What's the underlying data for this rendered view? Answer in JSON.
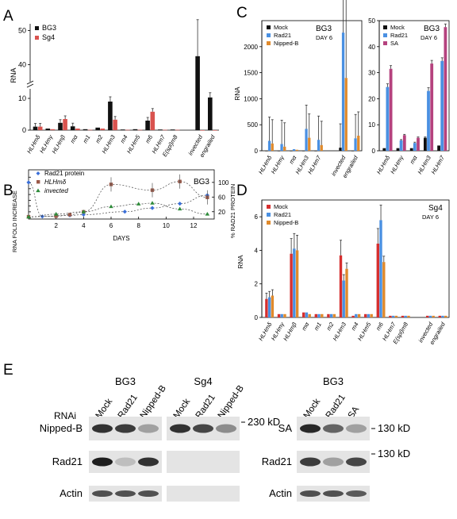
{
  "panel_letters": [
    "A",
    "B",
    "C",
    "D",
    "E"
  ],
  "chart_data": [
    {
      "id": "A",
      "type": "bar",
      "title": "",
      "ylabel": "RNA",
      "ylim_lower": [
        0,
        13
      ],
      "ylim_upper": [
        35,
        52
      ],
      "ticks_lower": [
        0,
        10
      ],
      "ticks_upper": [
        40,
        50
      ],
      "categories": [
        "HLHmδ",
        "HLHmγ",
        "HLHmβ",
        "mα",
        "m1",
        "m2",
        "HLHm3",
        "m4",
        "HLHm5",
        "m6",
        "HLHm7",
        "E(spl)m8",
        "",
        "invected",
        "engrailed"
      ],
      "series": [
        {
          "name": "BG3",
          "color": "#111111",
          "values": [
            1.1,
            0.5,
            2.3,
            1.2,
            0.3,
            0.8,
            9,
            0.2,
            0.3,
            3,
            0.2,
            0.2,
            null,
            42.5,
            10.3
          ]
        },
        {
          "name": "Sg4",
          "color": "#d9534f",
          "values": [
            1.1,
            0.3,
            3.5,
            0.5,
            0.1,
            0.5,
            3.3,
            0.1,
            0.1,
            5.8,
            0.1,
            0.1,
            null,
            0,
            0
          ]
        }
      ]
    },
    {
      "id": "B",
      "type": "scatter",
      "title": "BG3",
      "xlabel": "DAYS",
      "ylabel": "RNA FOLD INCREASE",
      "y2label": "% RAD21 PROTEIN",
      "xlim": [
        0,
        13.5
      ],
      "xticks": [
        2,
        4,
        6,
        8,
        10,
        12
      ],
      "ylim": [
        -5,
        160
      ],
      "yticks": [
        0,
        20,
        40,
        60,
        80,
        100,
        120,
        140
      ],
      "y2lim": [
        0,
        130
      ],
      "y2ticks": [
        20,
        60,
        100
      ],
      "series": [
        {
          "name": "Rad21 protein",
          "color": "#3b6fd8",
          "marker": "diamond",
          "axis": "y2",
          "x": [
            0,
            1,
            3,
            4,
            7,
            9,
            11,
            13
          ],
          "y": [
            100,
            7,
            10,
            12,
            20,
            30,
            42,
            65
          ]
        },
        {
          "name": "HLHmδ",
          "color": "#9b5a4a",
          "marker": "square",
          "axis": "y",
          "x": [
            0,
            2,
            3,
            4,
            6,
            9,
            11,
            13
          ],
          "y": [
            3,
            5,
            10,
            20,
            115,
            95,
            125,
            70
          ]
        },
        {
          "name": "invected",
          "color": "#2e8b3a",
          "marker": "triangle",
          "axis": "y",
          "x": [
            0,
            2,
            4,
            6,
            8,
            9,
            11,
            13
          ],
          "y": [
            2,
            12,
            20,
            38,
            47,
            50,
            30,
            12
          ]
        }
      ]
    },
    {
      "id": "C1",
      "type": "bar",
      "title": "BG3",
      "subtitle": "DAY 6",
      "ylabel": "RNA",
      "ylim": [
        0,
        2500
      ],
      "yticks": [
        0,
        500,
        1000,
        1500,
        2000
      ],
      "categories": [
        "HLHmδ",
        "HLHmγ",
        "mα",
        "HLHm3",
        "HLHm7",
        "",
        "invected",
        "engrailed"
      ],
      "series": [
        {
          "name": "Mock",
          "color": "#111111",
          "values": [
            0,
            0,
            0,
            0,
            0,
            null,
            60,
            0
          ]
        },
        {
          "name": "Rad21",
          "color": "#4a90e2",
          "values": [
            190,
            130,
            30,
            420,
            210,
            null,
            2270,
            240
          ]
        },
        {
          "name": "Nipped-B",
          "color": "#e08a2c",
          "values": [
            140,
            80,
            20,
            250,
            110,
            null,
            1400,
            290
          ]
        }
      ]
    },
    {
      "id": "C2",
      "type": "bar",
      "title": "BG3",
      "subtitle": "DAY 6",
      "ylabel": "",
      "ylim": [
        0,
        50
      ],
      "yticks": [
        0,
        10,
        20,
        30,
        40,
        50
      ],
      "categories": [
        "HLHmδ",
        "HLHmγ",
        "mα",
        "HLHm3",
        "HLHm7"
      ],
      "series": [
        {
          "name": "Mock",
          "color": "#111111",
          "values": [
            1,
            1,
            1,
            5,
            2
          ]
        },
        {
          "name": "Rad21",
          "color": "#4a90e2",
          "values": [
            24.5,
            4,
            3,
            23,
            34.5
          ]
        },
        {
          "name": "SA",
          "color": "#b5427e",
          "values": [
            31.5,
            6,
            5,
            33.5,
            47.5
          ]
        }
      ]
    },
    {
      "id": "D",
      "type": "bar",
      "title": "Sg4",
      "subtitle": "DAY 6",
      "ylabel": "RNA",
      "ylim": [
        0,
        7
      ],
      "yticks": [
        0,
        2,
        4,
        6
      ],
      "categories": [
        "HLHmδ",
        "HLHmγ",
        "HLHmβ",
        "mα",
        "m1",
        "m2",
        "HLHm3",
        "m4",
        "HLHm5",
        "m6",
        "HLHm7",
        "E(spl)m8",
        "",
        "invected",
        "engrailed"
      ],
      "series": [
        {
          "name": "Mock",
          "color": "#d62f2f",
          "values": [
            1.1,
            0.2,
            3.8,
            0.3,
            0.2,
            0.2,
            3.7,
            0.1,
            0.2,
            4.4,
            0.1,
            0.1,
            null,
            0.1,
            0.1
          ]
        },
        {
          "name": "Rad21",
          "color": "#4a90e2",
          "values": [
            1.2,
            0.2,
            4.1,
            0.3,
            0.2,
            0.2,
            2.2,
            0.2,
            0.2,
            5.8,
            0.1,
            0.1,
            null,
            0.1,
            0.1
          ]
        },
        {
          "name": "Nipped-B",
          "color": "#e08a2c",
          "values": [
            1.3,
            0.2,
            4.0,
            0.2,
            0.2,
            0.2,
            2.9,
            0.2,
            0.2,
            3.3,
            0.1,
            0.1,
            null,
            0.1,
            0.1
          ]
        }
      ]
    }
  ],
  "blot": {
    "rnai_label": "RNAi",
    "groups": [
      {
        "title": "BG3",
        "lanes": [
          "Mock",
          "Rad21",
          "Nipped-B"
        ]
      },
      {
        "title": "Sg4",
        "lanes": [
          "Mock",
          "Rad21",
          "Nipped-B"
        ]
      },
      {
        "title": "BG3",
        "lanes": [
          "Mock",
          "Rad21",
          "SA"
        ]
      }
    ],
    "row_labels_left": [
      "Nipped-B",
      "Rad21",
      "Actin"
    ],
    "row_labels_right": [
      "SA",
      "Rad21",
      "Actin"
    ],
    "size_labels": [
      "230 kD",
      "130 kD",
      "130 kD"
    ],
    "band_intensity": [
      [
        [
          0.85,
          0.8,
          0.3
        ],
        [
          0.85,
          0.75,
          0.4
        ],
        [
          0.9,
          0.6,
          0.3
        ]
      ],
      [
        [
          0.95,
          0.15,
          0.85
        ],
        [
          0,
          0,
          0
        ],
        [
          0.8,
          0.3,
          0.75
        ]
      ],
      [
        [
          0.7,
          0.7,
          0.7
        ],
        [
          0,
          0,
          0
        ],
        [
          0.7,
          0.7,
          0.65
        ]
      ]
    ]
  }
}
